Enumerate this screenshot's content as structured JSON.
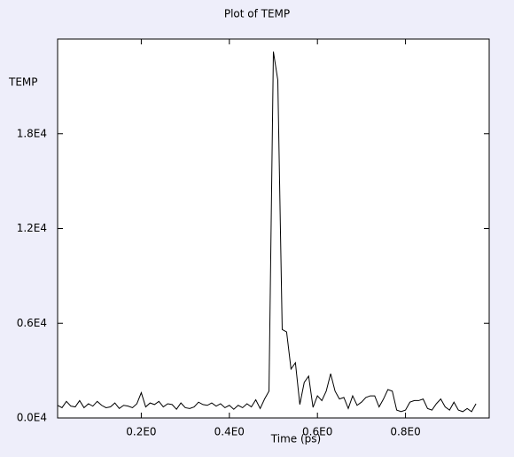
{
  "chart_data": {
    "type": "line",
    "title": "Plot of TEMP",
    "ylabel": "TEMP",
    "xlabel": "Time (ps)",
    "x": [
      0.01,
      0.02,
      0.03,
      0.04,
      0.05,
      0.06,
      0.07,
      0.08,
      0.09,
      0.1,
      0.11,
      0.12,
      0.13,
      0.14,
      0.15,
      0.16,
      0.17,
      0.18,
      0.19,
      0.2,
      0.21,
      0.22,
      0.23,
      0.24,
      0.25,
      0.26,
      0.27,
      0.28,
      0.29,
      0.3,
      0.31,
      0.32,
      0.33,
      0.34,
      0.35,
      0.36,
      0.37,
      0.38,
      0.39,
      0.4,
      0.41,
      0.42,
      0.43,
      0.44,
      0.45,
      0.46,
      0.47,
      0.48,
      0.49,
      0.5,
      0.51,
      0.52,
      0.53,
      0.54,
      0.55,
      0.56,
      0.57,
      0.58,
      0.59,
      0.6,
      0.61,
      0.62,
      0.63,
      0.64,
      0.65,
      0.66,
      0.67,
      0.68,
      0.69,
      0.7,
      0.71,
      0.72,
      0.73,
      0.74,
      0.75,
      0.76,
      0.77,
      0.78,
      0.79,
      0.8,
      0.81,
      0.82,
      0.83,
      0.84,
      0.85,
      0.86,
      0.87,
      0.88,
      0.89,
      0.9,
      0.91,
      0.92,
      0.93,
      0.94,
      0.95,
      0.96
    ],
    "series": [
      {
        "name": "TEMP",
        "color": "#000000",
        "values": [
          800,
          650,
          1050,
          750,
          700,
          1100,
          650,
          900,
          750,
          1050,
          800,
          650,
          700,
          950,
          600,
          800,
          750,
          650,
          900,
          1600,
          700,
          950,
          850,
          1050,
          700,
          900,
          850,
          550,
          950,
          650,
          600,
          700,
          1000,
          850,
          800,
          950,
          750,
          900,
          650,
          800,
          550,
          800,
          650,
          900,
          700,
          1150,
          600,
          1200,
          1700,
          23200,
          21400,
          5600,
          5450,
          3100,
          3500,
          850,
          2250,
          2650,
          670,
          1400,
          1100,
          1700,
          2800,
          1700,
          1200,
          1300,
          600,
          1400,
          800,
          1000,
          1300,
          1400,
          1400,
          700,
          1200,
          1800,
          1700,
          500,
          400,
          500,
          1000,
          1100,
          1100,
          1200,
          600,
          500,
          900,
          1200,
          700,
          500,
          1000,
          500,
          400,
          600,
          400,
          900
        ]
      }
    ],
    "xlim": [
      0.01,
      0.99
    ],
    "ylim": [
      0,
      24000
    ],
    "xticks": [
      {
        "value": 0.2,
        "label": "0.2E0"
      },
      {
        "value": 0.4,
        "label": "0.4E0"
      },
      {
        "value": 0.6,
        "label": "0.6E0"
      },
      {
        "value": 0.8,
        "label": "0.8E0"
      }
    ],
    "yticks": [
      {
        "value": 0,
        "label": "0.0E4"
      },
      {
        "value": 6000,
        "label": "0.6E4"
      },
      {
        "value": 12000,
        "label": "1.2E4"
      },
      {
        "value": 18000,
        "label": "1.8E4"
      }
    ],
    "grid": false
  }
}
